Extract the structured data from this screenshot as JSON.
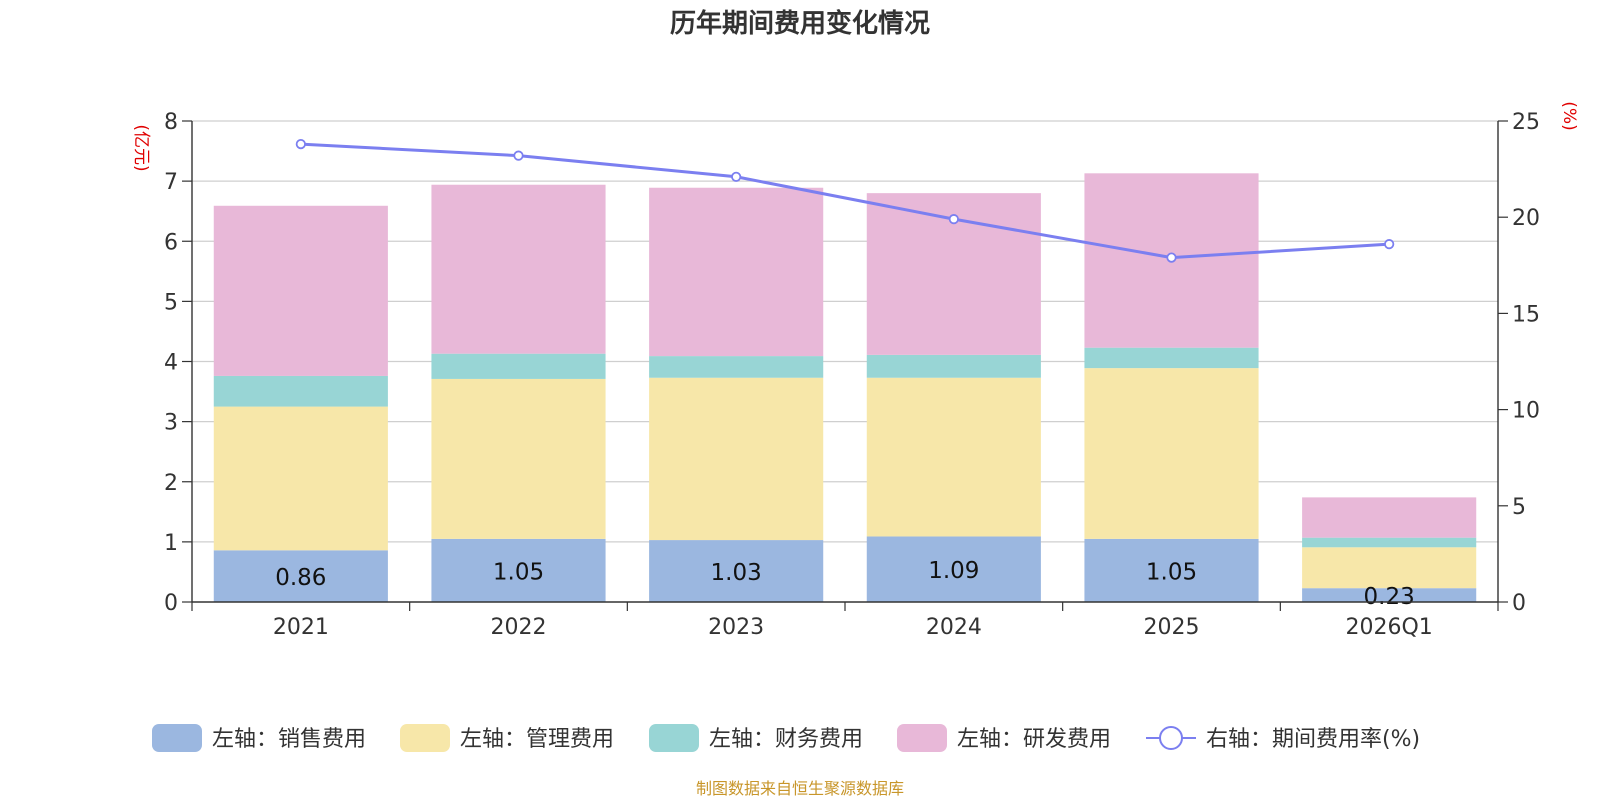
{
  "chart_data": {
    "type": "bar",
    "title": "历年期间费用变化情况",
    "left_axis_unit": "(亿元)",
    "right_axis_unit": "(%)",
    "categories": [
      "2021",
      "2022",
      "2023",
      "2024",
      "2025",
      "2026Q1"
    ],
    "left_axis": {
      "ylim": [
        0,
        8
      ],
      "ticks": [
        "0",
        "1",
        "2",
        "3",
        "4",
        "5",
        "6",
        "7",
        "8"
      ]
    },
    "right_axis": {
      "ylim": [
        0,
        25
      ],
      "ticks": [
        "0",
        "5",
        "10",
        "15",
        "20",
        "25"
      ]
    },
    "grid": true,
    "legend_position": "bottom",
    "series": [
      {
        "name": "左轴：销售费用",
        "type": "bar",
        "axis": "left",
        "color": "#9bb7e0",
        "values": [
          0.86,
          1.05,
          1.03,
          1.09,
          1.05,
          0.23
        ],
        "labels": [
          "0.86",
          "1.05",
          "1.03",
          "1.09",
          "1.05",
          "0.23"
        ]
      },
      {
        "name": "左轴：管理费用",
        "type": "bar",
        "axis": "left",
        "color": "#f7e7a9",
        "values": [
          2.39,
          2.66,
          2.7,
          2.64,
          2.84,
          0.68
        ]
      },
      {
        "name": "左轴：财务费用",
        "type": "bar",
        "axis": "left",
        "color": "#98d5d5",
        "values": [
          0.51,
          0.42,
          0.36,
          0.38,
          0.34,
          0.16
        ]
      },
      {
        "name": "左轴：研发费用",
        "type": "bar",
        "axis": "left",
        "color": "#e8b8d8",
        "values": [
          2.83,
          2.81,
          2.8,
          2.69,
          2.9,
          0.67
        ]
      },
      {
        "name": "右轴：期间费用率(%)",
        "type": "line",
        "axis": "right",
        "color": "#7b7ff0",
        "values": [
          23.8,
          23.2,
          22.1,
          19.9,
          17.9,
          18.6
        ]
      }
    ]
  },
  "source_note": "制图数据来自恒生聚源数据库"
}
